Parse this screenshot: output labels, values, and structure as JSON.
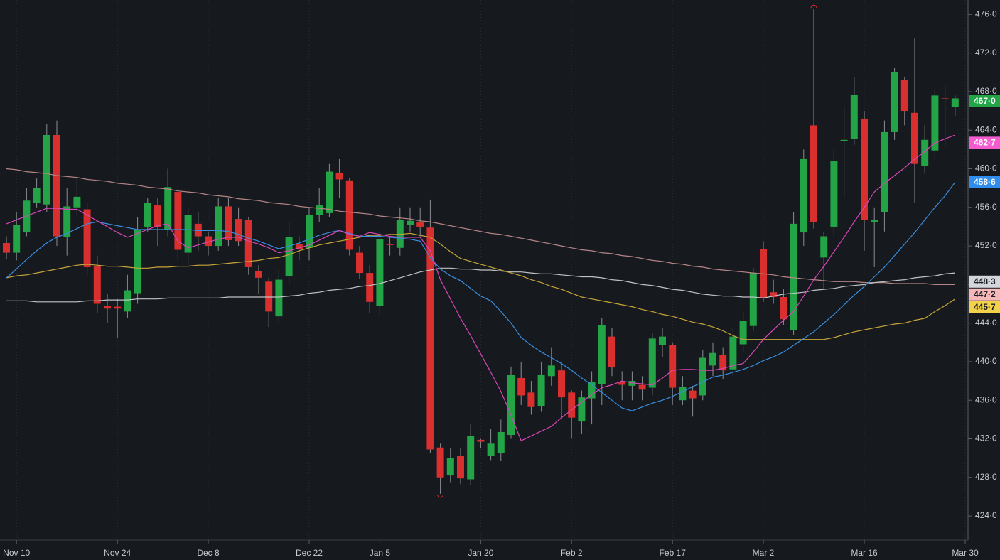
{
  "chart_data": {
    "type": "candlestick",
    "up_color": "#22a447",
    "down_color": "#d9302f",
    "ylim": [
      421.5,
      477.5
    ],
    "yticks": [
      {
        "value": 424,
        "label": "424·0"
      },
      {
        "value": 428,
        "label": "428·0"
      },
      {
        "value": 432,
        "label": "432·0"
      },
      {
        "value": 436,
        "label": "436·0"
      },
      {
        "value": 440,
        "label": "440·0"
      },
      {
        "value": 444,
        "label": "444·0"
      },
      {
        "value": 448,
        "label": "448·0"
      },
      {
        "value": 452,
        "label": "452·0"
      },
      {
        "value": 456,
        "label": "456·0"
      },
      {
        "value": 460,
        "label": "460·0"
      },
      {
        "value": 464,
        "label": "464·0"
      },
      {
        "value": 468,
        "label": "468·0"
      },
      {
        "value": 472,
        "label": "472·0"
      },
      {
        "value": 476,
        "label": "476·0"
      }
    ],
    "xticks": [
      {
        "value": 1,
        "label": "Nov 10"
      },
      {
        "value": 11,
        "label": "Nov 24"
      },
      {
        "value": 20,
        "label": "Dec 8"
      },
      {
        "value": 30,
        "label": "Dec 22"
      },
      {
        "value": 37,
        "label": "Jan 5"
      },
      {
        "value": 47,
        "label": "Jan 20"
      },
      {
        "value": 56,
        "label": "Feb 2"
      },
      {
        "value": 66,
        "label": "Feb 17"
      },
      {
        "value": 75,
        "label": "Mar 2"
      },
      {
        "value": 85,
        "label": "Mar 16"
      },
      {
        "value": 95,
        "label": "Mar 30"
      }
    ],
    "grid": true,
    "open": [
      452.3,
      451.3,
      453.4,
      456.5,
      456.3,
      463.5,
      452.9,
      456,
      455.8,
      449.9,
      445.8,
      445.7,
      445.2,
      447.1,
      454,
      456.2,
      453.7,
      457.6,
      451.3,
      454.3,
      453,
      452,
      456.1,
      454.8,
      454.7,
      449.4,
      448.3,
      444.7,
      448.9,
      452.2,
      451.8,
      455.2,
      455.4,
      459.6,
      458.8,
      451.3,
      449.2,
      445.8,
      452.2,
      451.8,
      454.2,
      454.5,
      453.9,
      431.1,
      428.2,
      430.2,
      427.8,
      431.9,
      430.2,
      430.5,
      432.4,
      438.3,
      436.8,
      435.4,
      438.5,
      439.1,
      436.8,
      433.8,
      436.2,
      437.7,
      442.6,
      437.9,
      437.5,
      437.6,
      437.3,
      441.7,
      441.7,
      436,
      437,
      436.5,
      439.6,
      440.7,
      439.2,
      441.8,
      443.7,
      451.7,
      447.2,
      446.7,
      443.3,
      453.4,
      464.5,
      450.8,
      454,
      463,
      463.1,
      465.2,
      454.5,
      455.5,
      463.8,
      469.2,
      465.8,
      460.3,
      461.9,
      467.3,
      466.4
    ],
    "high": [
      453,
      455.5,
      458,
      459,
      464.6,
      465,
      458,
      459,
      456.5,
      451,
      447,
      446.5,
      449,
      455,
      457,
      457,
      460,
      458,
      456,
      455.5,
      453.5,
      457,
      457,
      456,
      455,
      450,
      448.7,
      449.5,
      454.5,
      453,
      456,
      458,
      460.5,
      461,
      459,
      452,
      450,
      453.5,
      453,
      456,
      456,
      456,
      456.8,
      431.5,
      431,
      431,
      433.5,
      432,
      433,
      434,
      439.5,
      440,
      438,
      440,
      441.5,
      440,
      437,
      437,
      439,
      444.5,
      443.5,
      439,
      439,
      438.5,
      443,
      443.5,
      442,
      438.5,
      437.5,
      441.2,
      442,
      441.5,
      443.5,
      445.3,
      449.7,
      452.5,
      448.5,
      447.5,
      455.5,
      462,
      476.6,
      453.5,
      462,
      466.5,
      469.5,
      466,
      456,
      465,
      470.5,
      469.5,
      473.5,
      464.5,
      468.2,
      468.7,
      467.6
    ],
    "low": [
      450.6,
      450.5,
      453,
      456,
      455.5,
      452,
      451,
      455,
      449,
      445,
      444,
      442.5,
      444.5,
      446,
      453.5,
      452,
      453,
      450.5,
      450,
      451.5,
      451,
      451.5,
      452,
      452,
      449,
      447,
      443.6,
      444,
      448,
      450.5,
      450.5,
      454.5,
      455,
      457,
      451,
      448.6,
      445,
      444.8,
      451,
      451,
      453.5,
      453,
      430.5,
      426.3,
      427.5,
      427.3,
      427.2,
      431,
      429.8,
      429.7,
      432,
      435.5,
      434.5,
      434.8,
      437.5,
      434,
      432,
      432.5,
      433.5,
      435.5,
      438.5,
      436,
      436,
      436,
      436.5,
      440.5,
      435.5,
      435.5,
      434.3,
      436,
      438.5,
      438.2,
      438.5,
      441,
      443.2,
      446.2,
      446,
      443.8,
      442.8,
      452,
      453.8,
      447.5,
      453,
      457,
      462.5,
      451.5,
      449.8,
      453.5,
      463,
      464.5,
      456.5,
      459.5,
      461,
      462.3,
      465.5
    ],
    "close": [
      451.3,
      454.2,
      456.7,
      458,
      463.5,
      453,
      456.1,
      457.1,
      449.8,
      446,
      445.5,
      445.5,
      447.4,
      453.7,
      456.5,
      454,
      458.1,
      451.6,
      455.2,
      453,
      452,
      456.1,
      452.6,
      452.5,
      449.8,
      448.7,
      445.2,
      448.5,
      452.9,
      451.7,
      455.2,
      456.2,
      459.7,
      458.9,
      451.6,
      449.2,
      446.2,
      452.7,
      452.1,
      454.7,
      454.6,
      454,
      430.9,
      428,
      430,
      427.9,
      432.3,
      431.7,
      431.5,
      432.7,
      438.6,
      436.5,
      435.3,
      438.6,
      439.6,
      436.3,
      434.2,
      436.3,
      437.9,
      443.8,
      439.4,
      437.6,
      438,
      437.1,
      442.4,
      442.6,
      437.3,
      437.4,
      436.2,
      440.4,
      440.9,
      439.1,
      442.6,
      444.2,
      449.2,
      446.6,
      446.7,
      444.4,
      454.3,
      461,
      454.5,
      453,
      460.8,
      463,
      467.7,
      454.7,
      454.7,
      463.8,
      470,
      466,
      460.5,
      463,
      467.6,
      467.2,
      467.3
    ],
    "series": [
      {
        "color": "#b58585",
        "values": [
          460,
          459.9,
          459.7,
          459.6,
          459.5,
          459.3,
          459.2,
          459.1,
          458.9,
          458.8,
          458.7,
          458.5,
          458.4,
          458.3,
          458.1,
          458,
          457.9,
          457.7,
          457.6,
          457.5,
          457.3,
          457.2,
          457.1,
          456.9,
          456.8,
          456.7,
          456.5,
          456.4,
          456.3,
          456.1,
          456,
          455.9,
          455.8,
          455.6,
          455.5,
          455.4,
          455.3,
          455.1,
          455,
          454.9,
          454.8,
          454.6,
          454.5,
          454.3,
          454.1,
          453.9,
          453.7,
          453.5,
          453.3,
          453.2,
          453,
          452.8,
          452.6,
          452.4,
          452.2,
          452,
          451.8,
          451.6,
          451.5,
          451.3,
          451.2,
          451,
          450.9,
          450.7,
          450.5,
          450.4,
          450.2,
          450.1,
          449.9,
          449.8,
          449.6,
          449.5,
          449.4,
          449.3,
          449.2,
          449.1,
          449,
          448.8,
          448.7,
          448.6,
          448.5,
          448.4,
          448.3,
          448.3,
          448.3,
          448.2,
          448.2,
          448.2,
          448.1,
          448.1,
          448.1,
          448.1,
          448,
          448,
          448
        ]
      },
      {
        "color": "#bfc2c6",
        "values": [
          446.3,
          446.3,
          446.3,
          446.2,
          446.2,
          446.2,
          446.2,
          446.2,
          446.3,
          446.3,
          446.4,
          446.4,
          446.4,
          446.5,
          446.5,
          446.5,
          446.6,
          446.6,
          446.6,
          446.6,
          446.6,
          446.6,
          446.7,
          446.7,
          446.7,
          446.7,
          446.7,
          446.7,
          446.8,
          446.9,
          447.1,
          447.2,
          447.4,
          447.5,
          447.6,
          447.8,
          447.9,
          448.1,
          448.4,
          448.7,
          449,
          449.3,
          449.5,
          449.7,
          449.7,
          449.6,
          449.6,
          449.5,
          449.5,
          449.4,
          449.3,
          449.3,
          449.2,
          449.1,
          449.1,
          449,
          448.9,
          448.8,
          448.8,
          448.7,
          448.5,
          448.4,
          448.2,
          448,
          447.9,
          447.7,
          447.5,
          447.4,
          447.2,
          447,
          446.9,
          446.8,
          446.8,
          446.7,
          446.7,
          446.6,
          446.8,
          447,
          447.1,
          447.2,
          447.4,
          447.5,
          447.6,
          447.8,
          447.9,
          448,
          448.2,
          448.3,
          448.4,
          448.5,
          448.7,
          448.8,
          448.9,
          449.1,
          449.2
        ]
      },
      {
        "color": "#c7a53a",
        "values": [
          448.7,
          448.9,
          449,
          449.2,
          449.4,
          449.6,
          449.8,
          450,
          450.1,
          450,
          449.9,
          449.9,
          449.8,
          449.7,
          449.7,
          449.8,
          449.8,
          449.9,
          449.9,
          450,
          450,
          450.1,
          450.2,
          450.3,
          450.4,
          450.5,
          450.7,
          450.8,
          451.1,
          451.5,
          451.8,
          452.1,
          452.3,
          452.5,
          452.7,
          452.9,
          453.1,
          453.1,
          453.2,
          453.2,
          453.3,
          453.1,
          452.9,
          452.2,
          451.4,
          450.7,
          450.4,
          450.1,
          449.8,
          449.5,
          449.2,
          448.9,
          448.5,
          448.2,
          447.8,
          447.5,
          447.1,
          446.7,
          446.5,
          446.3,
          446.1,
          445.9,
          445.7,
          445.4,
          445.2,
          444.9,
          444.7,
          444.4,
          444.1,
          443.9,
          443.6,
          443.2,
          442.7,
          442.3,
          442.3,
          442.3,
          442.3,
          442.3,
          442.3,
          442.3,
          442.3,
          442.3,
          442.5,
          442.8,
          443.1,
          443.3,
          443.5,
          443.7,
          443.9,
          444,
          444.3,
          444.5,
          445.2,
          445.8,
          446.5
        ]
      },
      {
        "color": "#3a8ee0",
        "values": [
          448.7,
          449.6,
          450.6,
          451.5,
          452.3,
          452.9,
          453.3,
          453.8,
          454.3,
          454.5,
          454.3,
          454.1,
          453.9,
          453.7,
          453.7,
          453.7,
          453.7,
          453.7,
          453.7,
          453.6,
          453.6,
          453.6,
          453.5,
          453.2,
          452.8,
          452.5,
          452.1,
          451.7,
          452,
          452.3,
          452.7,
          453.1,
          453.4,
          453.6,
          453.3,
          453,
          453,
          453,
          452.9,
          452.8,
          452.7,
          452.5,
          450.8,
          449.6,
          448.9,
          448.4,
          447.6,
          446.8,
          446.3,
          445.2,
          444,
          442.5,
          441.7,
          441,
          440.4,
          439.8,
          439.1,
          438.3,
          437.6,
          436.8,
          436,
          435.2,
          434.9,
          435.3,
          435.7,
          436,
          436.4,
          436.9,
          437.4,
          437.9,
          438.4,
          438.6,
          438.9,
          439.2,
          439.6,
          440.1,
          440.5,
          441,
          441.7,
          442.4,
          443.1,
          444,
          444.9,
          445.9,
          446.9,
          447.8,
          448.8,
          449.8,
          451,
          452.2,
          453.4,
          454.7,
          456,
          457.2,
          458.6
        ]
      },
      {
        "color": "#d946b9",
        "values": [
          454.3,
          454.7,
          455.1,
          455.5,
          455.9,
          455.9,
          455.8,
          455.8,
          455.2,
          454.6,
          454,
          453.4,
          452.9,
          453.3,
          453.7,
          454.1,
          454.3,
          452.5,
          451.8,
          452.1,
          452.4,
          452.7,
          452.9,
          452.9,
          452.5,
          452.2,
          451.8,
          451.3,
          451.5,
          451.8,
          452.1,
          452.6,
          453.1,
          453.6,
          453.2,
          453,
          453.4,
          453.2,
          453,
          452.9,
          452.9,
          452.9,
          451.5,
          448.5,
          446.5,
          444.5,
          442.7,
          440.8,
          438.9,
          436.9,
          434.5,
          431.8,
          432.3,
          432.8,
          433.3,
          434.2,
          435,
          435.8,
          436.6,
          437.3,
          437.6,
          438,
          437.8,
          437.7,
          437.6,
          438.3,
          439.1,
          439.2,
          439.2,
          439.1,
          439.1,
          439.3,
          439.6,
          439.8,
          441,
          442.3,
          443.3,
          444.3,
          445.2,
          446.8,
          448.5,
          449.9,
          451.4,
          452.9,
          454.5,
          456,
          457.6,
          458.5,
          459.3,
          460.1,
          461,
          461.8,
          462.7,
          463.1,
          463.5
        ]
      }
    ],
    "price_tags": [
      {
        "value": 467.0,
        "label": "467·0",
        "color": "#22a447",
        "text_color": "#ffffff"
      },
      {
        "value": 462.7,
        "label": "462·7",
        "color": "#f25ccf",
        "text_color": "#ffffff"
      },
      {
        "value": 458.6,
        "label": "458·6",
        "color": "#2f8ded",
        "text_color": "#ffffff"
      },
      {
        "value": 448.3,
        "label": "448·3",
        "color": "#d3d6da",
        "text_color": "#1b1e22"
      },
      {
        "value": 447.2,
        "label": "447·2",
        "color": "#f4b8b8",
        "text_color": "#1b1e22"
      },
      {
        "value": 445.7,
        "label": "445·7",
        "color": "#f2d24a",
        "text_color": "#1b1e22"
      }
    ]
  }
}
